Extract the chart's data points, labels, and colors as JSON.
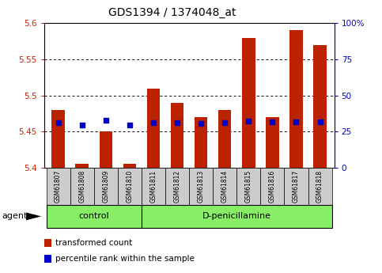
{
  "title": "GDS1394 / 1374048_at",
  "samples": [
    "GSM61807",
    "GSM61808",
    "GSM61809",
    "GSM61810",
    "GSM61811",
    "GSM61812",
    "GSM61813",
    "GSM61814",
    "GSM61815",
    "GSM61816",
    "GSM61817",
    "GSM61818"
  ],
  "bar_tops": [
    5.48,
    5.406,
    5.45,
    5.406,
    5.51,
    5.49,
    5.47,
    5.48,
    5.58,
    5.47,
    5.59,
    5.57
  ],
  "bar_base": 5.4,
  "blue_dots": [
    5.463,
    5.459,
    5.466,
    5.459,
    5.463,
    5.463,
    5.461,
    5.462,
    5.465,
    5.464,
    5.464,
    5.464
  ],
  "ylim": [
    5.4,
    5.6
  ],
  "y_ticks": [
    5.4,
    5.45,
    5.5,
    5.55,
    5.6
  ],
  "right_ticks": [
    0,
    25,
    50,
    75,
    100
  ],
  "right_tick_positions": [
    5.4,
    5.45,
    5.5,
    5.55,
    5.6
  ],
  "groups": [
    {
      "label": "control",
      "start": 0,
      "end": 4
    },
    {
      "label": "D-penicillamine",
      "start": 4,
      "end": 12
    }
  ],
  "bar_color": "#BB2200",
  "dot_color": "#0000CC",
  "grid_color": "#000000",
  "tick_label_color_left": "#CC2200",
  "tick_label_color_right": "#0000CC",
  "legend_items": [
    {
      "color": "#BB2200",
      "label": "transformed count"
    },
    {
      "color": "#0000CC",
      "label": "percentile rank within the sample"
    }
  ],
  "agent_label": "agent",
  "group_bg_color": "#88EE66",
  "sample_bg_color": "#CCCCCC"
}
